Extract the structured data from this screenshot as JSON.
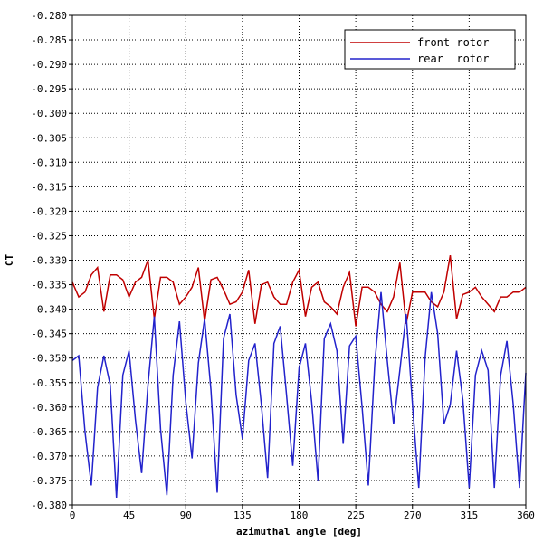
{
  "chart_data": {
    "type": "line",
    "xlabel": "azimuthal angle [deg]",
    "ylabel": "CT",
    "xlim": [
      0,
      360
    ],
    "ylim": [
      -0.38,
      -0.28
    ],
    "x_ticks": [
      0,
      45,
      90,
      135,
      180,
      225,
      270,
      315,
      360
    ],
    "y_ticks": [
      -0.28,
      -0.285,
      -0.29,
      -0.295,
      -0.3,
      -0.305,
      -0.31,
      -0.315,
      -0.32,
      -0.325,
      -0.33,
      -0.335,
      -0.34,
      -0.345,
      -0.35,
      -0.355,
      -0.36,
      -0.365,
      -0.37,
      -0.375,
      -0.38
    ],
    "x_tick_labels": [
      "0",
      "45",
      "90",
      "135",
      "180",
      "225",
      "270",
      "315",
      "360"
    ],
    "y_tick_labels": [
      "-0.280",
      "-0.285",
      "-0.290",
      "-0.295",
      "-0.300",
      "-0.305",
      "-0.310",
      "-0.315",
      "-0.320",
      "-0.325",
      "-0.330",
      "-0.335",
      "-0.340",
      "-0.345",
      "-0.350",
      "-0.355",
      "-0.360",
      "-0.365",
      "-0.370",
      "-0.375",
      "-0.380"
    ],
    "grid": true,
    "legend_position": "top-right",
    "series": [
      {
        "name": "front rotor",
        "color": "#c00000",
        "x": [
          0,
          5,
          10,
          15,
          20,
          25,
          30,
          35,
          40,
          45,
          50,
          55,
          60,
          65,
          70,
          75,
          80,
          85,
          90,
          95,
          100,
          105,
          110,
          115,
          120,
          125,
          130,
          135,
          140,
          145,
          150,
          155,
          160,
          165,
          170,
          175,
          180,
          185,
          190,
          195,
          200,
          205,
          210,
          215,
          220,
          225,
          230,
          235,
          240,
          245,
          250,
          255,
          260,
          265,
          270,
          275,
          280,
          285,
          290,
          295,
          300,
          305,
          310,
          315,
          320,
          325,
          330,
          335,
          340,
          345,
          350,
          355,
          360
        ],
        "y": [
          -0.3345,
          -0.3375,
          -0.3365,
          -0.333,
          -0.3315,
          -0.3405,
          -0.333,
          -0.333,
          -0.334,
          -0.3375,
          -0.3345,
          -0.3335,
          -0.33,
          -0.342,
          -0.3335,
          -0.3335,
          -0.3345,
          -0.339,
          -0.3375,
          -0.3355,
          -0.3315,
          -0.3425,
          -0.334,
          -0.3335,
          -0.336,
          -0.339,
          -0.3385,
          -0.3365,
          -0.332,
          -0.343,
          -0.335,
          -0.3345,
          -0.3375,
          -0.339,
          -0.339,
          -0.3345,
          -0.332,
          -0.3415,
          -0.3355,
          -0.3345,
          -0.3385,
          -0.3395,
          -0.341,
          -0.3355,
          -0.3325,
          -0.3435,
          -0.3355,
          -0.3355,
          -0.3365,
          -0.339,
          -0.3405,
          -0.3375,
          -0.3305,
          -0.343,
          -0.3365,
          -0.3365,
          -0.3365,
          -0.3385,
          -0.3395,
          -0.3365,
          -0.329,
          -0.342,
          -0.337,
          -0.3365,
          -0.3355,
          -0.3375,
          -0.339,
          -0.3405,
          -0.3375,
          -0.3375,
          -0.3365,
          -0.3365,
          -0.3355
        ]
      },
      {
        "name": "rear  rotor",
        "color": "#2222cc",
        "x": [
          0,
          5,
          10,
          15,
          20,
          25,
          30,
          35,
          40,
          45,
          50,
          55,
          60,
          65,
          70,
          75,
          80,
          85,
          90,
          95,
          100,
          105,
          110,
          115,
          120,
          125,
          130,
          135,
          140,
          145,
          150,
          155,
          160,
          165,
          170,
          175,
          180,
          185,
          190,
          195,
          200,
          205,
          210,
          215,
          220,
          225,
          230,
          235,
          240,
          245,
          250,
          255,
          260,
          265,
          270,
          275,
          280,
          285,
          290,
          295,
          300,
          305,
          310,
          315,
          320,
          325,
          330,
          335,
          340,
          345,
          350,
          355,
          360
        ],
        "y": [
          -0.3505,
          -0.3495,
          -0.365,
          -0.376,
          -0.356,
          -0.3495,
          -0.3555,
          -0.3785,
          -0.3535,
          -0.3485,
          -0.3625,
          -0.3735,
          -0.3555,
          -0.3415,
          -0.3645,
          -0.378,
          -0.3535,
          -0.3425,
          -0.359,
          -0.3705,
          -0.351,
          -0.342,
          -0.3565,
          -0.3775,
          -0.346,
          -0.341,
          -0.3575,
          -0.3665,
          -0.3505,
          -0.347,
          -0.3595,
          -0.3745,
          -0.347,
          -0.3435,
          -0.3575,
          -0.372,
          -0.352,
          -0.347,
          -0.359,
          -0.375,
          -0.346,
          -0.343,
          -0.3485,
          -0.3675,
          -0.3475,
          -0.3455,
          -0.36,
          -0.376,
          -0.3515,
          -0.3365,
          -0.3505,
          -0.3635,
          -0.3525,
          -0.341,
          -0.3595,
          -0.3765,
          -0.35,
          -0.3365,
          -0.345,
          -0.3635,
          -0.3595,
          -0.3485,
          -0.3585,
          -0.3765,
          -0.3535,
          -0.3485,
          -0.3525,
          -0.3765,
          -0.3535,
          -0.3465,
          -0.3595,
          -0.3765,
          -0.353
        ]
      }
    ]
  }
}
